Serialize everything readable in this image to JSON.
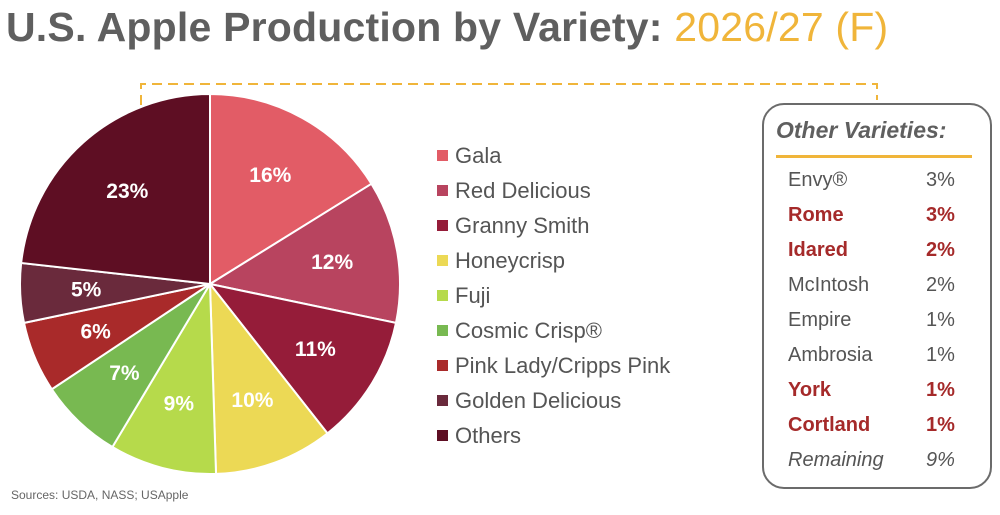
{
  "title": {
    "main": "U.S. Apple Production by Variety:",
    "year": "2026/27 (F)"
  },
  "chart_data": {
    "type": "pie",
    "slices": [
      {
        "label": "Gala",
        "value": 16,
        "display": "16%",
        "color": "#e25c66"
      },
      {
        "label": "Red Delicious",
        "value": 12,
        "display": "12%",
        "color": "#b8445f"
      },
      {
        "label": "Granny Smith",
        "value": 11,
        "display": "11%",
        "color": "#951c39"
      },
      {
        "label": "Honeycrisp",
        "value": 10,
        "display": "10%",
        "color": "#ecd955"
      },
      {
        "label": "Fuji",
        "value": 9,
        "display": "9%",
        "color": "#b6da4b"
      },
      {
        "label": "Cosmic Crisp®",
        "value": 7,
        "display": "7%",
        "color": "#78b951"
      },
      {
        "label": "Pink Lady/Cripps Pink",
        "value": 6,
        "display": "6%",
        "color": "#a92a2a"
      },
      {
        "label": "Golden Delicious",
        "value": 5,
        "display": "5%",
        "color": "#6a2a3c"
      },
      {
        "label": "Others",
        "value": 23,
        "display": "23%",
        "color": "#5e0e23"
      }
    ],
    "legend_position": "right"
  },
  "other_varieties": {
    "title": "Other Varieties:",
    "items": [
      {
        "name": "Envy®",
        "pct": "3%",
        "highlight": false,
        "italic": false
      },
      {
        "name": "Rome",
        "pct": "3%",
        "highlight": true,
        "italic": false
      },
      {
        "name": "Idared",
        "pct": "2%",
        "highlight": true,
        "italic": false
      },
      {
        "name": "McIntosh",
        "pct": "2%",
        "highlight": false,
        "italic": false
      },
      {
        "name": "Empire",
        "pct": "1%",
        "highlight": false,
        "italic": false
      },
      {
        "name": "Ambrosia",
        "pct": "1%",
        "highlight": false,
        "italic": false
      },
      {
        "name": "York",
        "pct": "1%",
        "highlight": true,
        "italic": false
      },
      {
        "name": "Cortland",
        "pct": "1%",
        "highlight": true,
        "italic": false
      },
      {
        "name": "Remaining",
        "pct": "9%",
        "highlight": false,
        "italic": true
      }
    ]
  },
  "source": "Sources: USDA, NASS; USApple",
  "colors": {
    "title": "#5f5f5f",
    "accent": "#f0b53a",
    "highlight": "#a52a2a",
    "connector": "#f0b53a"
  }
}
